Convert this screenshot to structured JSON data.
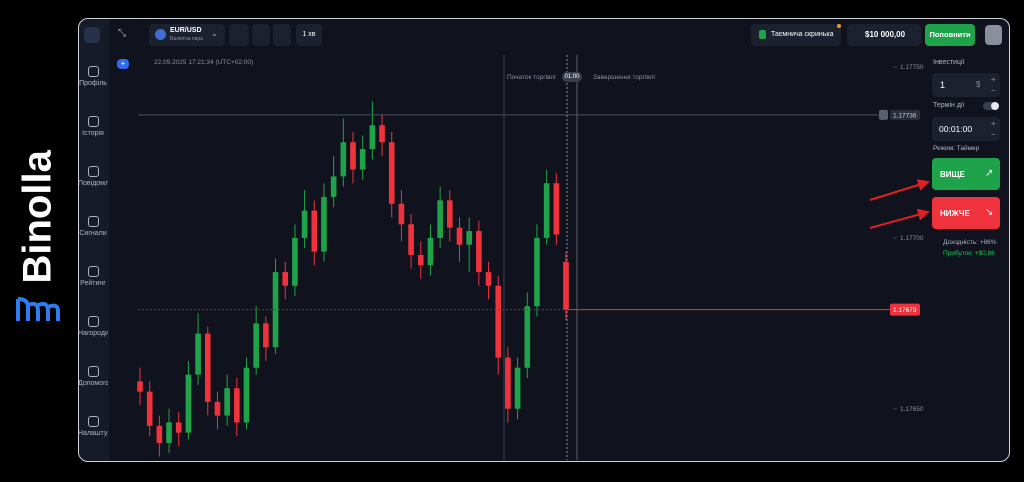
{
  "logo": "Binolla",
  "sidebar": [
    "Профіль",
    "Історія",
    "Повідомлення",
    "Сигнали",
    "Рейтинг",
    "Нагороди",
    "Допомога",
    "Налаштування"
  ],
  "toolbar": {
    "pair": "EUR/USD",
    "pair_type": "Валютна пара",
    "timeframe": "1 хв",
    "mystery_box": "Таємнича скринька",
    "balance": "$10 000,00",
    "deposit": "Поповнити"
  },
  "timestamp": "22.09.2025 17:21:34 (UTC+02:00)",
  "trade_markers": {
    "start": "Початок торгівлі",
    "time": "01:00",
    "end": "Завершення торгівлі"
  },
  "chart_data": {
    "type": "candlestick",
    "open": [
      1.17658,
      1.17655,
      1.17645,
      1.1764,
      1.17646,
      1.17643,
      1.1766,
      1.17672,
      1.17652,
      1.17648,
      1.17656,
      1.17646,
      1.17662,
      1.17675,
      1.17668,
      1.1769,
      1.17686,
      1.177,
      1.17708,
      1.17696,
      1.17712,
      1.17718,
      1.17728,
      1.1772,
      1.17726,
      1.17733,
      1.17728,
      1.1771,
      1.17704,
      1.17695,
      1.17692,
      1.177,
      1.17711,
      1.17703,
      1.17698,
      1.17702,
      1.1769,
      1.17686,
      1.17665,
      1.1765,
      1.17662,
      1.1768,
      1.177,
      1.17716,
      1.17693
    ],
    "high": [
      1.17662,
      1.17658,
      1.17648,
      1.1765,
      1.17649,
      1.17664,
      1.17678,
      1.17674,
      1.17655,
      1.1766,
      1.17659,
      1.17665,
      1.1768,
      1.17677,
      1.17694,
      1.17693,
      1.17704,
      1.17714,
      1.17711,
      1.17716,
      1.17724,
      1.17735,
      1.17731,
      1.1773,
      1.1774,
      1.17736,
      1.17731,
      1.17714,
      1.17707,
      1.17699,
      1.17704,
      1.17715,
      1.17714,
      1.17706,
      1.17706,
      1.17705,
      1.17693,
      1.17689,
      1.17668,
      1.17665,
      1.17684,
      1.17704,
      1.1772,
      1.17719,
      1.17696
    ],
    "low": [
      1.17651,
      1.17642,
      1.17636,
      1.17637,
      1.17639,
      1.17641,
      1.17657,
      1.17648,
      1.17644,
      1.17645,
      1.17642,
      1.17644,
      1.1766,
      1.17664,
      1.17666,
      1.17682,
      1.17683,
      1.17697,
      1.17692,
      1.17693,
      1.17709,
      1.17715,
      1.17716,
      1.17717,
      1.17723,
      1.17724,
      1.17706,
      1.17699,
      1.17691,
      1.17688,
      1.17689,
      1.17697,
      1.17699,
      1.17693,
      1.1769,
      1.17686,
      1.17682,
      1.1766,
      1.17646,
      1.17647,
      1.17659,
      1.17677,
      1.17698,
      1.17698,
      1.17676
    ],
    "close": [
      1.17655,
      1.17645,
      1.1764,
      1.17646,
      1.17643,
      1.1766,
      1.17672,
      1.17652,
      1.17648,
      1.17656,
      1.17646,
      1.17662,
      1.17675,
      1.17668,
      1.1769,
      1.17686,
      1.177,
      1.17708,
      1.17696,
      1.17712,
      1.17718,
      1.17728,
      1.1772,
      1.17726,
      1.17733,
      1.17728,
      1.1771,
      1.17704,
      1.17695,
      1.17692,
      1.177,
      1.17711,
      1.17703,
      1.17698,
      1.17702,
      1.1769,
      1.17686,
      1.17665,
      1.1765,
      1.17662,
      1.1768,
      1.177,
      1.17716,
      1.17701,
      1.17679
    ],
    "up_color": "#1fa34a",
    "down_color": "#f0323c",
    "ylim": [
      1.17635,
      1.17755
    ],
    "yticks": [
      {
        "value": 1.1775,
        "label": "1.17750"
      },
      {
        "value": 1.177,
        "label": "1.17700"
      },
      {
        "value": 1.1765,
        "label": "1.17650"
      }
    ],
    "grid": false,
    "reference_price": 1.17736,
    "current_price": 1.17679
  },
  "panel": {
    "investment_label": "Інвестиції",
    "investment": "1",
    "currency": "$",
    "expiry_label": "Термін дії",
    "expiry": "00:01:00",
    "mode": "Режим: Таймер",
    "up": "ВИЩЕ",
    "down": "НИЖЧЕ",
    "payout": "Доходність: +86%",
    "profit": "Прибуток: +$0,86"
  }
}
